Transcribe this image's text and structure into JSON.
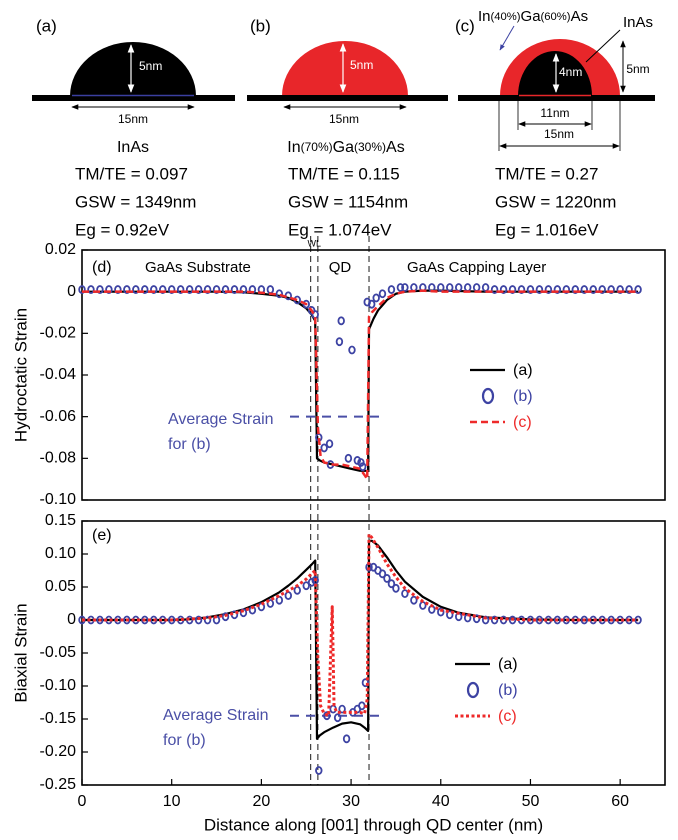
{
  "panels": [
    {
      "label": "(a)",
      "height": "5nm",
      "width": "15nm",
      "material": "InAs",
      "properties": [
        "TM/TE = 0.097",
        "GSW = 1349nm",
        "Eg = 0.92eV"
      ]
    },
    {
      "label": "(b)",
      "height": "5nm",
      "width": "15nm",
      "material": "In(70%)Ga(30%)As",
      "properties": [
        "TM/TE = 0.115",
        "GSW = 1154nm",
        "Eg = 1.074eV"
      ]
    },
    {
      "label": "(c)",
      "outer_material": "In(40%)Ga(60%)As",
      "inner_material": "InAs",
      "inner_height": "4nm",
      "height": "5nm",
      "inner_width": "11nm",
      "width": "15nm",
      "properties": [
        "TM/TE = 0.27",
        "GSW = 1220nm",
        "Eg = 1.016eV"
      ]
    }
  ],
  "chart_data": [
    {
      "type": "line",
      "panel_label": "(d)",
      "ylabel": "Hydroctatic Strain",
      "region_labels": [
        "GaAs Substrate",
        "QD",
        "GaAs Capping Layer"
      ],
      "wl_label": "WL",
      "xlim": [
        0,
        65
      ],
      "ylim": [
        -0.1,
        0.02
      ],
      "yticks": [
        0.02,
        0,
        -0.02,
        -0.04,
        -0.06,
        -0.08,
        {
          "value": -0.1,
          "label": "-0.10"
        }
      ],
      "boundaries": [
        25.5,
        26.3,
        32
      ],
      "avg_strain": {
        "value": -0.06,
        "label": [
          "Average Strain",
          "for (b)"
        ],
        "color": "#4a4fa6"
      },
      "legend": "center right",
      "series": [
        {
          "name": "(a)",
          "color": "#000000",
          "style": "solid",
          "x": [
            0,
            5,
            10,
            15,
            18,
            20,
            22,
            23,
            24,
            25,
            25.6,
            26,
            26.2,
            26.5,
            27,
            28,
            29,
            30,
            31,
            31.5,
            31.9,
            32,
            32.5,
            33,
            34,
            35,
            36,
            38,
            40,
            45,
            50,
            55,
            62
          ],
          "values": [
            0,
            0,
            0,
            0,
            -0.0003,
            -0.001,
            -0.002,
            -0.003,
            -0.005,
            -0.008,
            -0.011,
            -0.014,
            -0.08,
            -0.081,
            -0.082,
            -0.083,
            -0.084,
            -0.085,
            -0.086,
            -0.086,
            -0.086,
            -0.018,
            -0.013,
            -0.009,
            -0.004,
            -0.001,
            0,
            0.0005,
            0.0005,
            0,
            0,
            0,
            0
          ]
        },
        {
          "name": "(b)",
          "color": "#3d43a3",
          "style": "markers",
          "x": [
            0,
            1,
            2,
            3,
            4,
            5,
            6,
            7,
            8,
            9,
            10,
            11,
            12,
            13,
            14,
            15,
            16,
            17,
            18,
            19,
            20,
            21,
            22,
            23,
            24,
            25,
            25.6,
            26,
            26.4,
            27,
            27.6,
            27.7,
            28.7,
            28.9,
            29.7,
            30.1,
            30.7,
            31.1,
            31.3,
            31.8,
            32.3,
            32.8,
            33.5,
            34.5,
            35.5,
            36,
            37,
            38,
            39,
            40,
            41,
            42,
            43,
            44,
            45,
            46,
            47,
            48,
            49,
            50,
            51,
            52,
            53,
            54,
            55,
            56,
            57,
            58,
            59,
            60,
            61,
            62
          ],
          "values": [
            0.001,
            0.001,
            0.001,
            0.001,
            0.001,
            0.001,
            0.001,
            0.001,
            0.001,
            0.001,
            0.001,
            0.001,
            0.001,
            0.001,
            0.001,
            0.001,
            0.001,
            0.001,
            0.001,
            0.001,
            0.001,
            0.001,
            -0.001,
            -0.002,
            -0.004,
            -0.006,
            -0.009,
            -0.011,
            -0.07,
            -0.075,
            -0.073,
            -0.083,
            -0.024,
            -0.014,
            -0.08,
            -0.028,
            -0.081,
            -0.082,
            -0.084,
            -0.005,
            -0.006,
            -0.003,
            -0.001,
            0.001,
            0.002,
            0.002,
            0.002,
            0.002,
            0.002,
            0.002,
            0.002,
            0.002,
            0.002,
            0.002,
            0.002,
            0.001,
            0.001,
            0.001,
            0.001,
            0.001,
            0.001,
            0.001,
            0.001,
            0.001,
            0.001,
            0.001,
            0.001,
            0.001,
            0.001,
            0.001,
            0.001,
            0.001
          ]
        },
        {
          "name": "(c)",
          "color": "#ee2a2a",
          "style": "dashed",
          "x": [
            0,
            10,
            18,
            20,
            22,
            24,
            25,
            25.6,
            26,
            26.3,
            26.6,
            27,
            28,
            29,
            30,
            31,
            31.5,
            31.8,
            32,
            32.3,
            33,
            34,
            35,
            36,
            38,
            40,
            50,
            62
          ],
          "values": [
            0,
            0,
            0,
            -0.0005,
            -0.0015,
            -0.004,
            -0.006,
            -0.009,
            -0.012,
            -0.065,
            -0.079,
            -0.082,
            -0.083,
            -0.083,
            -0.084,
            -0.085,
            -0.088,
            -0.09,
            -0.012,
            -0.01,
            -0.007,
            -0.003,
            -0.001,
            0,
            0.0005,
            0,
            0,
            0
          ]
        }
      ]
    },
    {
      "type": "line",
      "panel_label": "(e)",
      "ylabel": "Biaxial Strain",
      "xlabel": "Distance along [001] through QD center (nm)",
      "xlim": [
        0,
        65
      ],
      "ylim": [
        -0.25,
        0.15
      ],
      "xticks": [
        0,
        10,
        20,
        30,
        40,
        50,
        60
      ],
      "yticks": [
        0.15,
        {
          "value": 0.1,
          "label": "0.10"
        },
        0.05,
        0,
        -0.05,
        {
          "value": -0.1,
          "label": "-0.10"
        },
        -0.15,
        {
          "value": -0.2,
          "label": "-0.20"
        },
        -0.25
      ],
      "boundaries": [
        25.5,
        26.3,
        32
      ],
      "avg_strain": {
        "value": -0.145,
        "label": [
          "Average Strain",
          "for (b)"
        ],
        "color": "#4a4fa6"
      },
      "legend": "lower right",
      "series": [
        {
          "name": "(a)",
          "color": "#000000",
          "style": "solid",
          "x": [
            0,
            5,
            10,
            12,
            14,
            16,
            18,
            20,
            22,
            23,
            24,
            25,
            25.6,
            26,
            26.2,
            26.5,
            27,
            28,
            29,
            30,
            31,
            31.5,
            31.9,
            32,
            32.3,
            33,
            34,
            35,
            36,
            38,
            40,
            42,
            45,
            50,
            55,
            62
          ],
          "values": [
            0,
            0,
            0,
            0.001,
            0.004,
            0.009,
            0.016,
            0.027,
            0.042,
            0.052,
            0.063,
            0.076,
            0.084,
            0.09,
            -0.18,
            -0.175,
            -0.17,
            -0.163,
            -0.157,
            -0.155,
            -0.158,
            -0.163,
            -0.168,
            0.12,
            0.12,
            0.113,
            0.095,
            0.075,
            0.058,
            0.035,
            0.02,
            0.011,
            0.004,
            0.001,
            0,
            0
          ]
        },
        {
          "name": "(b)",
          "color": "#3d43a3",
          "style": "markers",
          "x": [
            0,
            1,
            2,
            3,
            4,
            5,
            6,
            7,
            8,
            9,
            10,
            11,
            12,
            13,
            14,
            15,
            16,
            17,
            18,
            19,
            20,
            21,
            22,
            23,
            24,
            25,
            25.6,
            26,
            26.4,
            27.3,
            28,
            28.5,
            29,
            29.5,
            30.2,
            30.7,
            31.2,
            31.6,
            32,
            32.5,
            33,
            33.5,
            34,
            34.5,
            35,
            36,
            37,
            38,
            39,
            40,
            41,
            42,
            43,
            44,
            45,
            46,
            47,
            48,
            49,
            50,
            51,
            52,
            53,
            54,
            55,
            56,
            57,
            58,
            59,
            60,
            61,
            62
          ],
          "values": [
            0,
            0,
            0,
            0,
            0,
            0,
            0,
            0,
            0,
            0,
            0,
            0,
            0,
            0,
            0,
            0,
            0.005,
            0.008,
            0.011,
            0.015,
            0.02,
            0.025,
            0.03,
            0.037,
            0.045,
            0.052,
            0.057,
            0.06,
            -0.228,
            -0.145,
            -0.135,
            -0.148,
            -0.135,
            -0.18,
            -0.14,
            -0.135,
            -0.13,
            -0.095,
            0.08,
            0.08,
            0.075,
            0.07,
            0.063,
            0.055,
            0.048,
            0.04,
            0.03,
            0.022,
            0.016,
            0.012,
            0.008,
            0.005,
            0.003,
            0.002,
            0,
            0,
            0,
            0,
            0,
            0,
            0,
            0,
            0,
            0,
            0,
            0,
            0,
            0,
            0,
            0,
            0,
            0
          ]
        },
        {
          "name": "(c)",
          "color": "#ee2a2a",
          "style": "dotted",
          "x": [
            0,
            10,
            14,
            16,
            18,
            20,
            22,
            24,
            25,
            25.6,
            26,
            26.3,
            26.6,
            27,
            27.5,
            27.9,
            28.1,
            28.4,
            29,
            30,
            31,
            31.5,
            31.8,
            32,
            32.3,
            33,
            34,
            35,
            36,
            38,
            40,
            45,
            50,
            62
          ],
          "values": [
            0,
            0,
            0.003,
            0.007,
            0.014,
            0.024,
            0.037,
            0.052,
            0.062,
            0.07,
            0.075,
            -0.06,
            -0.13,
            -0.142,
            -0.145,
            0.02,
            -0.13,
            -0.14,
            -0.14,
            -0.14,
            -0.14,
            -0.142,
            -0.12,
            0.13,
            0.125,
            0.11,
            0.085,
            0.065,
            0.048,
            0.028,
            0.015,
            0.003,
            0,
            0
          ]
        }
      ]
    }
  ]
}
